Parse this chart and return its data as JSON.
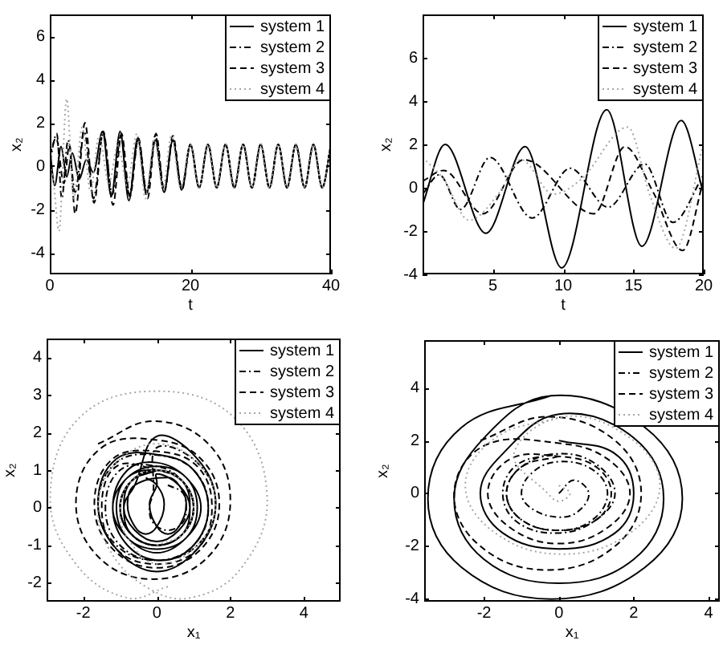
{
  "chart_data": [
    {
      "type": "line",
      "xlabel": "t",
      "ylabel": "x₂",
      "xlim": [
        0,
        40
      ],
      "ylim": [
        -5,
        7
      ],
      "xticks": [
        0,
        20,
        40
      ],
      "yticks": [
        -4,
        -2,
        0,
        2,
        4,
        6
      ],
      "legend": "top right",
      "series": [
        {
          "name": "system 1",
          "color": "#000000",
          "line_style": "solid",
          "x": [
            0,
            0.7,
            1.6,
            2.4,
            3.2,
            4.2,
            5.2,
            6.2,
            7.5,
            8.75,
            10,
            11.25,
            12.5,
            13.75,
            15,
            16.25,
            17.5,
            18.75,
            20,
            21.25,
            22.5,
            23.75,
            25,
            26.25,
            27.5,
            28.75,
            30,
            31.25,
            32.5,
            33.75,
            35,
            36.25,
            37.5,
            38.75,
            40
          ],
          "values": [
            0.8,
            -0.9,
            0.9,
            -0.5,
            0.6,
            -0.6,
            0.3,
            -0.3,
            1.6,
            -1.4,
            1.6,
            -1.6,
            1.3,
            -1.3,
            1.2,
            -1.2,
            1.2,
            -1.1,
            1,
            -1,
            1,
            -1,
            1,
            -1,
            1,
            -1,
            1,
            -1,
            1,
            -1,
            1,
            -1,
            1,
            -1,
            1
          ]
        },
        {
          "name": "system 2",
          "color": "#000000",
          "line_style": "dashdot",
          "x": [
            0,
            1.0,
            1.7,
            2.6,
            3.6,
            4.9,
            6.2,
            7.6,
            8.9,
            10.1,
            11.3,
            12.6,
            13.8,
            15,
            16.3,
            17.5,
            18.8,
            20,
            21.25,
            22.5,
            23.75,
            25,
            26.25,
            27.5,
            28.75,
            30,
            31.25,
            32.5,
            33.75,
            35,
            36.25,
            37.5,
            38.75,
            40
          ],
          "values": [
            0.2,
            1.5,
            -1.5,
            1.2,
            -1.2,
            1.6,
            -1.5,
            1.5,
            -1.3,
            1.4,
            -1.3,
            1.2,
            -1.2,
            1.4,
            -1.1,
            1.2,
            -1.0,
            1,
            -1,
            1,
            -1,
            1,
            -1,
            1,
            -1,
            1,
            -1,
            1,
            -1,
            1,
            -1,
            1,
            -1,
            1
          ]
        },
        {
          "name": "system 3",
          "color": "#000000",
          "line_style": "dashed",
          "x": [
            0,
            0.9,
            2.0,
            2.8,
            3.6,
            5.0,
            6.3,
            7.6,
            9.0,
            10.2,
            11.4,
            12.6,
            13.9,
            15.1,
            16.3,
            17.5,
            18.8,
            20,
            21.25,
            22.5,
            23.75,
            25,
            26.25,
            27.5,
            28.75,
            30,
            31.25,
            32.5,
            33.75,
            35,
            36.25,
            37.5,
            38.75,
            40
          ],
          "values": [
            0.5,
            1.3,
            -0.8,
            1.0,
            -2.2,
            2.0,
            -1.7,
            1.6,
            -1.8,
            1.5,
            -1.4,
            1.3,
            -1.5,
            1.5,
            -1.2,
            1.4,
            -1.1,
            1,
            -1,
            1,
            -1,
            1,
            -1,
            1,
            -1,
            1,
            -1,
            1,
            -1,
            1,
            -1,
            1,
            -1,
            1
          ]
        },
        {
          "name": "system 4",
          "color": "#a6a6a6",
          "line_style": "dotted",
          "x": [
            0,
            0.6,
            1.3,
            2.4,
            3.4,
            4.6,
            5.8,
            7.0,
            8.4,
            9.7,
            11.0,
            12.4,
            13.6,
            14.9,
            16.1,
            17.3,
            18.6,
            20,
            21.25,
            22.5,
            23.75,
            25,
            26.25,
            27.5,
            28.75,
            30,
            31.25,
            32.5,
            33.75,
            35,
            36.25,
            37.5,
            38.75,
            40
          ],
          "values": [
            0.3,
            -1.0,
            -3.0,
            3.1,
            -1.5,
            1.8,
            -1.2,
            1.4,
            -0.8,
            1.0,
            -0.9,
            1.5,
            -1.5,
            1.2,
            -1.0,
            1.4,
            -1.0,
            1,
            -1,
            1,
            -1,
            1,
            -1,
            1,
            -1,
            1,
            -1,
            1,
            -1,
            1,
            -1,
            1,
            -1,
            1
          ]
        }
      ]
    },
    {
      "type": "line",
      "xlabel": "t",
      "ylabel": "x₂",
      "xlim": [
        0,
        20
      ],
      "ylim": [
        -4,
        8
      ],
      "xticks": [
        5,
        10,
        15,
        20
      ],
      "yticks": [
        -4,
        -2,
        0,
        2,
        4,
        6
      ],
      "legend": "top right",
      "series": [
        {
          "name": "system 1",
          "color": "#000000",
          "line_style": "solid",
          "x": [
            0,
            1.6,
            4.5,
            7.3,
            9.9,
            13.1,
            15.6,
            18.4,
            20
          ],
          "values": [
            -0.8,
            2.0,
            -2.1,
            1.9,
            -3.7,
            3.6,
            -2.7,
            3.1,
            -0.3
          ]
        },
        {
          "name": "system 2",
          "color": "#000000",
          "line_style": "dashdot",
          "x": [
            0,
            1.2,
            2.7,
            4.8,
            7.8,
            10.5,
            13.2,
            15.8,
            17.8,
            20
          ],
          "values": [
            -0.3,
            0.6,
            -1.0,
            1.4,
            -1.4,
            0.9,
            -0.9,
            1.1,
            -1.6,
            0.6
          ]
        },
        {
          "name": "system 3",
          "color": "#000000",
          "line_style": "dashed",
          "x": [
            0,
            1.5,
            4.3,
            7.2,
            12.2,
            14.4,
            16.4,
            18.5,
            20
          ],
          "values": [
            0.3,
            0.8,
            -1.2,
            1.3,
            -1.2,
            1.9,
            -0.2,
            -2.9,
            0.4
          ]
        },
        {
          "name": "system 4",
          "color": "#a6a6a6",
          "line_style": "dotted",
          "x": [
            0,
            1.5,
            3.3,
            5.5,
            7.0,
            9.3,
            11.3,
            14.6,
            16.2,
            18.0,
            20
          ],
          "values": [
            1.4,
            0.4,
            -1.5,
            -0.2,
            1.3,
            -0.3,
            0.4,
            2.8,
            -0.4,
            -2.8,
            2.1
          ]
        }
      ]
    },
    {
      "type": "line",
      "xlabel": "x₁",
      "ylabel": "x₂",
      "xlim": [
        -3,
        5
      ],
      "ylim": [
        -2.5,
        4.5
      ],
      "xticks": [
        -2,
        0,
        2,
        4
      ],
      "yticks": [
        -2,
        -1,
        0,
        1,
        2,
        3,
        4
      ],
      "legend": "top right",
      "series": [
        {
          "name": "system 1",
          "color": "#000000",
          "line_style": "solid",
          "x": [
            -0.3,
            0,
            0.2,
            0,
            -0.3,
            -0.6,
            -0.8,
            -0.6,
            0.3,
            0.6,
            0.8,
            0.6,
            0.3,
            0,
            -0.2,
            0,
            0,
            0.6,
            0.9,
            0.6,
            0,
            -0.6,
            -0.9,
            -0.6,
            0,
            1.1,
            1.6,
            1.1,
            0,
            -1.1,
            -1.6,
            -1.1,
            0.1,
            1.0,
            1.4,
            1.0,
            0.1,
            -0.8,
            -1.2,
            -0.8,
            0,
            0.8,
            1.2,
            0.8,
            0,
            -0.8,
            -1.2,
            -0.8,
            0,
            0.8,
            1.1,
            0.8,
            0,
            -0.8,
            -1.1,
            -0.8,
            0,
            0.7,
            1.0,
            0.7,
            0,
            -0.7,
            -1.0,
            -0.7,
            0,
            0.7,
            0.9,
            0.7,
            0,
            -0.7,
            -0.9,
            -0.7,
            0
          ],
          "values": [
            0.8,
            0.6,
            0.1,
            -0.5,
            -0.7,
            -0.5,
            0.1,
            0.6,
            0.8,
            0.6,
            0.1,
            -0.5,
            -0.7,
            -0.5,
            0.1,
            0.6,
            0.9,
            0.6,
            0,
            -0.6,
            -0.9,
            -0.6,
            0,
            0.6,
            1.9,
            1.3,
            0.1,
            -1.1,
            -1.7,
            -1.1,
            0.1,
            1.3,
            1.4,
            1.0,
            0,
            -1.0,
            -1.4,
            -1.0,
            0,
            1.0,
            1.2,
            0.8,
            0,
            -0.8,
            -1.2,
            -0.8,
            0,
            0.8,
            1.1,
            0.8,
            0,
            -0.8,
            -1.1,
            -0.8,
            0,
            0.8,
            1.0,
            0.7,
            0,
            -0.7,
            -1.0,
            -0.7,
            0,
            0.7,
            1.0,
            0.7,
            0,
            -0.7,
            -1.0,
            -0.7,
            0,
            0.7,
            1.0
          ]
        },
        {
          "name": "system 2",
          "color": "#000000",
          "line_style": "dashdot",
          "x": [
            0.3,
            0.7,
            0.8,
            0.7,
            0.3,
            -0.1,
            -0.2,
            -0.1,
            0,
            1.1,
            1.6,
            1.1,
            0,
            -1.1,
            -1.6,
            -1.1,
            0,
            1.0,
            1.4,
            1.0,
            0,
            -1.0,
            -1.4,
            -1.0,
            0,
            0.7,
            1.0,
            0.7,
            0,
            -0.7,
            -1.0,
            -0.7,
            0
          ],
          "values": [
            0.6,
            0.4,
            0,
            -0.4,
            -0.6,
            -0.4,
            0,
            0.4,
            1.6,
            1.2,
            0.1,
            -1.0,
            -1.4,
            -1.0,
            0.1,
            1.2,
            1.4,
            1.0,
            0,
            -1.0,
            -1.4,
            -1.0,
            0,
            1.0,
            1.1,
            0.7,
            0,
            -0.7,
            -1.0,
            -0.7,
            0,
            0.7,
            1.1
          ]
        },
        {
          "name": "system 3",
          "color": "#000000",
          "line_style": "dashed",
          "x": [
            -1.6,
            -0.1,
            1.4,
            2.0,
            1.4,
            -0.1,
            -1.6,
            -2.2,
            -1.5,
            0,
            1.2,
            1.7,
            1.2,
            0,
            -1.2,
            -1.7,
            -1.2,
            0,
            1.1,
            1.5,
            1.1,
            0,
            -1.1,
            -1.5,
            -1.1,
            0,
            0.7,
            1.0,
            0.7,
            0,
            -0.7,
            -1.0,
            -0.7,
            0
          ],
          "values": [
            1.7,
            2.3,
            1.7,
            0.2,
            -1.3,
            -1.9,
            -1.3,
            0.2,
            1.6,
            1.8,
            1.3,
            0.1,
            -1.1,
            -1.6,
            -1.1,
            0.1,
            1.3,
            1.5,
            1.1,
            0,
            -1.1,
            -1.5,
            -1.1,
            0,
            1.1,
            1.0,
            0.7,
            0,
            -0.7,
            -1.0,
            -0.7,
            0,
            0.7,
            1.0
          ]
        },
        {
          "name": "system 4",
          "color": "#a6a6a6",
          "line_style": "dotted",
          "x": [
            0.3,
            -0.8,
            -2.2,
            -2.9,
            -2.1,
            0,
            2.1,
            3.0,
            2.3,
            0.9,
            -0.3,
            -1.3,
            -1.6,
            -1.1,
            0,
            1.1,
            1.6,
            1.1,
            0,
            -0.8,
            -1.0,
            -0.7,
            0,
            0.7,
            1.0,
            0.7,
            0
          ],
          "values": [
            -2.1,
            -2.4,
            -1.5,
            0.3,
            2.4,
            3.1,
            2.4,
            0.3,
            -1.6,
            -2.4,
            -2.1,
            -1.1,
            0.1,
            1.2,
            1.7,
            1.2,
            0.1,
            -1.0,
            -1.5,
            -0.8,
            0,
            0.7,
            1.0,
            0.7,
            0,
            -0.7,
            -1.0
          ]
        }
      ]
    },
    {
      "type": "line",
      "xlabel": "x₁",
      "ylabel": "x₂",
      "xlim": [
        -3.6,
        4.3
      ],
      "ylim": [
        -4.1,
        5.8
      ],
      "xticks": [
        -2,
        0,
        2,
        4
      ],
      "yticks": [
        -4,
        -2,
        0,
        2,
        4
      ],
      "legend": "top right",
      "series": [
        {
          "name": "system 1",
          "color": "#000000",
          "line_style": "solid",
          "x": [
            0,
            1.5,
            2.0,
            1.5,
            0,
            -1.5,
            -2.1,
            -1.5,
            0,
            2.0,
            2.8,
            2.0,
            0,
            -2.0,
            -2.8,
            -2.0,
            -0.2,
            2.3,
            3.3,
            2.3,
            -0.2,
            -2.6,
            -3.5,
            -2.6,
            -0.2
          ],
          "values": [
            2.0,
            1.5,
            0,
            -1.5,
            -2.1,
            -1.5,
            0,
            1.5,
            3.0,
            2.1,
            -0.2,
            -2.5,
            -3.4,
            -2.5,
            -0.2,
            2.1,
            3.7,
            2.5,
            -0.2,
            -2.8,
            -4.0,
            -2.8,
            -0.2,
            2.5,
            3.7
          ]
        },
        {
          "name": "system 2",
          "color": "#000000",
          "line_style": "dashdot",
          "x": [
            0,
            0.4,
            0.8,
            0.5,
            0,
            -0.7,
            -1.0,
            -0.7,
            0,
            0.9,
            1.3,
            0.9,
            0,
            -1.0,
            -1.4,
            -1.0,
            0,
            1.0,
            1.5,
            1.0,
            0,
            -1.1,
            -1.5,
            -1.1,
            0
          ],
          "values": [
            0,
            0.5,
            0,
            -0.7,
            -0.9,
            -0.6,
            0,
            0.8,
            1.2,
            0.9,
            0,
            -1.0,
            -1.4,
            -1.0,
            0,
            1.0,
            1.5,
            1.1,
            0,
            -1.0,
            -1.5,
            -1.1,
            0,
            1.1,
            1.5
          ]
        },
        {
          "name": "system 3",
          "color": "#000000",
          "line_style": "dashed",
          "x": [
            -2.1,
            -0.3,
            1.5,
            2.2,
            1.5,
            -0.3,
            -2.1,
            -2.8,
            -2.0,
            0,
            1.3,
            1.9,
            1.3,
            0,
            -1.3,
            -1.9,
            -1.3,
            0,
            1.0,
            1.4,
            1.0,
            0,
            -1.0,
            -1.4,
            -1.0,
            0
          ],
          "values": [
            2.0,
            2.9,
            2.0,
            0,
            -2.0,
            -2.9,
            -2.0,
            0,
            1.8,
            1.9,
            1.3,
            0,
            -1.3,
            -1.9,
            -1.3,
            0,
            1.3,
            1.4,
            1.0,
            0,
            -1.0,
            -1.4,
            -1.0,
            0,
            1.0,
            1.4
          ]
        },
        {
          "name": "system 4",
          "color": "#a6a6a6",
          "line_style": "dotted",
          "x": [
            0,
            0.3,
            0,
            -0.3,
            -1.2,
            0.1,
            1.9,
            2.7,
            1.9,
            0.1,
            -1.7,
            -2.5,
            -1.7,
            0.1
          ],
          "values": [
            0.3,
            0,
            -0.3,
            0,
            1.5,
            2.9,
            2.1,
            0.3,
            -1.5,
            -2.3,
            -1.5,
            0.3,
            2.1,
            2.9
          ]
        }
      ]
    }
  ]
}
